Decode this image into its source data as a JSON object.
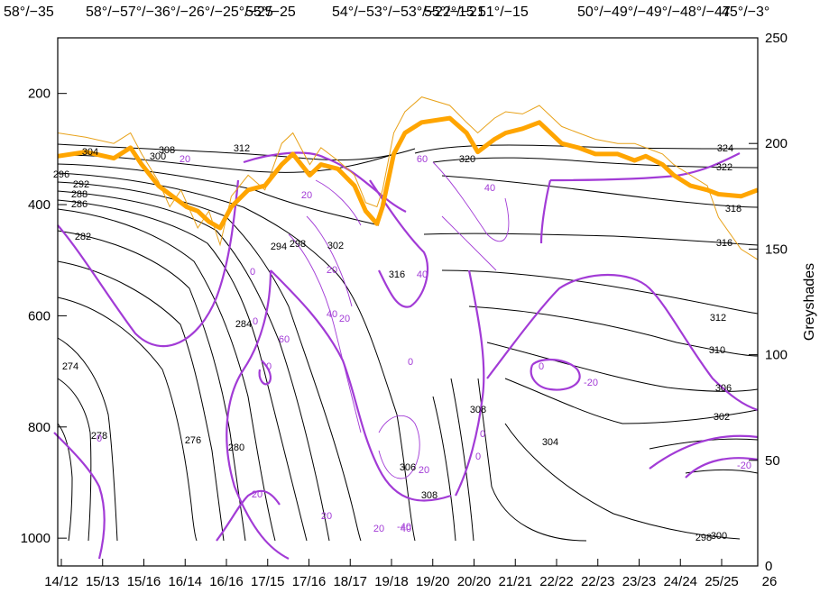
{
  "top_labels": [
    "58°/−35",
    "58°/−57°/−36°/−26°/−25°/−25",
    "55°/−25",
    "54°/−53°/−53°/−22°/−21",
    "55°/−15",
    "51°/−15",
    "50°/−49°/−49°/−48°/−47",
    "45°/−3°"
  ],
  "chart_data": {
    "type": "contour",
    "title": "",
    "xlabel": "",
    "ylabel": "",
    "y2label": "Greyshades",
    "x_tick_labels": [
      "14/12",
      "15/13",
      "15/16",
      "16/14",
      "16/16",
      "17/15",
      "17/16",
      "18/17",
      "19/18",
      "19/20",
      "20/20",
      "21/21",
      "22/22",
      "22/23",
      "23/23",
      "24/24",
      "25/25",
      "26"
    ],
    "y_ticks": [
      200,
      400,
      600,
      800,
      1000
    ],
    "y_range": [
      1050,
      100
    ],
    "y2_ticks": [
      0,
      50,
      100,
      150,
      200,
      250
    ],
    "y2_range": [
      0,
      250
    ],
    "theta_labels": [
      "304",
      "308",
      "300",
      "312",
      "296",
      "292",
      "288",
      "286",
      "282",
      "294",
      "298",
      "302",
      "320",
      "316",
      "324",
      "322",
      "318",
      "316",
      "312",
      "310",
      "306",
      "302",
      "308",
      "304",
      "298",
      "300",
      "274",
      "278",
      "276",
      "280",
      "284",
      "306",
      "308"
    ],
    "pv_labels": [
      "20",
      "60",
      "40",
      "20",
      "0",
      "20",
      "40",
      "60",
      "20",
      "0",
      "40",
      "20",
      "0",
      "0",
      "0",
      "0",
      "-20",
      "0",
      "20",
      "-20",
      "0",
      "40",
      "20",
      "-40",
      "20"
    ],
    "greyshade_thick": [
      [
        0,
        194
      ],
      [
        0.05,
        196
      ],
      [
        0.1,
        193
      ],
      [
        0.13,
        198
      ],
      [
        0.15,
        190
      ],
      [
        0.18,
        180
      ],
      [
        0.2,
        176
      ],
      [
        0.23,
        170
      ],
      [
        0.25,
        168
      ],
      [
        0.27,
        163
      ],
      [
        0.29,
        160
      ],
      [
        0.31,
        170
      ],
      [
        0.34,
        178
      ],
      [
        0.37,
        180
      ],
      [
        0.4,
        190
      ],
      [
        0.42,
        195
      ],
      [
        0.45,
        185
      ],
      [
        0.47,
        190
      ],
      [
        0.5,
        188
      ],
      [
        0.53,
        180
      ],
      [
        0.55,
        168
      ],
      [
        0.57,
        162
      ],
      [
        0.58,
        170
      ],
      [
        0.6,
        195
      ],
      [
        0.62,
        205
      ],
      [
        0.65,
        210
      ],
      [
        0.7,
        212
      ],
      [
        0.73,
        205
      ],
      [
        0.75,
        196
      ],
      [
        0.78,
        202
      ],
      [
        0.8,
        205
      ],
      [
        0.83,
        207
      ],
      [
        0.86,
        210
      ],
      [
        0.9,
        200
      ],
      [
        0.93,
        198
      ],
      [
        0.96,
        195
      ],
      [
        1.0,
        195
      ],
      [
        1.03,
        192
      ],
      [
        1.05,
        194
      ],
      [
        1.08,
        190
      ],
      [
        1.1,
        185
      ],
      [
        1.13,
        180
      ],
      [
        1.16,
        178
      ],
      [
        1.18,
        176
      ],
      [
        1.22,
        175
      ],
      [
        1.25,
        178
      ]
    ],
    "greyshade_thin": [
      [
        0,
        205
      ],
      [
        0.05,
        203
      ],
      [
        0.1,
        200
      ],
      [
        0.13,
        205
      ],
      [
        0.15,
        195
      ],
      [
        0.18,
        182
      ],
      [
        0.2,
        170
      ],
      [
        0.22,
        178
      ],
      [
        0.25,
        160
      ],
      [
        0.27,
        168
      ],
      [
        0.29,
        152
      ],
      [
        0.31,
        175
      ],
      [
        0.34,
        185
      ],
      [
        0.37,
        178
      ],
      [
        0.4,
        200
      ],
      [
        0.42,
        205
      ],
      [
        0.45,
        190
      ],
      [
        0.47,
        198
      ],
      [
        0.5,
        192
      ],
      [
        0.53,
        185
      ],
      [
        0.55,
        172
      ],
      [
        0.57,
        170
      ],
      [
        0.58,
        178
      ],
      [
        0.6,
        205
      ],
      [
        0.62,
        215
      ],
      [
        0.65,
        222
      ],
      [
        0.7,
        218
      ],
      [
        0.73,
        210
      ],
      [
        0.75,
        205
      ],
      [
        0.78,
        212
      ],
      [
        0.8,
        215
      ],
      [
        0.83,
        214
      ],
      [
        0.86,
        218
      ],
      [
        0.9,
        208
      ],
      [
        0.93,
        205
      ],
      [
        0.96,
        202
      ],
      [
        1.0,
        200
      ],
      [
        1.03,
        200
      ],
      [
        1.05,
        198
      ],
      [
        1.08,
        195
      ],
      [
        1.1,
        190
      ],
      [
        1.13,
        185
      ],
      [
        1.16,
        180
      ],
      [
        1.18,
        165
      ],
      [
        1.22,
        150
      ],
      [
        1.25,
        145
      ]
    ]
  }
}
